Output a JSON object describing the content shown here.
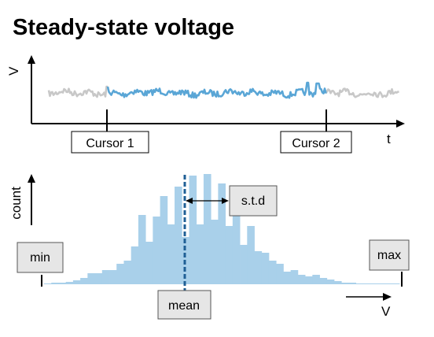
{
  "title": "Steady-state voltage",
  "trace_plot": {
    "y_axis_label": "V",
    "x_axis_label": "t",
    "cursor1_label": "Cursor 1",
    "cursor2_label": "Cursor 2"
  },
  "histogram_plot": {
    "y_axis_label": "count",
    "x_axis_label": "V",
    "min_label": "min",
    "max_label": "max",
    "mean_label": "mean",
    "std_label": "s.t.d"
  },
  "colors": {
    "trace_outside": "#c8c8c8",
    "trace_inside": "#5aa6d6",
    "histogram_fill": "#a9d0ea",
    "mean_line": "#1f5f95",
    "label_box_fill": "#e6e6e6",
    "axis": "#000000"
  },
  "chart_data": {
    "type": "bar",
    "histogram_counts": [
      0.5,
      1,
      1,
      1.5,
      2.5,
      4,
      7,
      7,
      9,
      9,
      13,
      15,
      24,
      44,
      27,
      43,
      56,
      38,
      62,
      30,
      69,
      38,
      70,
      41,
      64,
      37,
      49,
      25,
      37,
      21,
      20,
      15,
      13,
      8,
      9,
      6,
      5,
      6,
      4,
      3,
      2,
      1,
      1,
      0.5,
      0.5,
      0.5,
      0.5,
      0.5,
      0.5
    ]
  }
}
